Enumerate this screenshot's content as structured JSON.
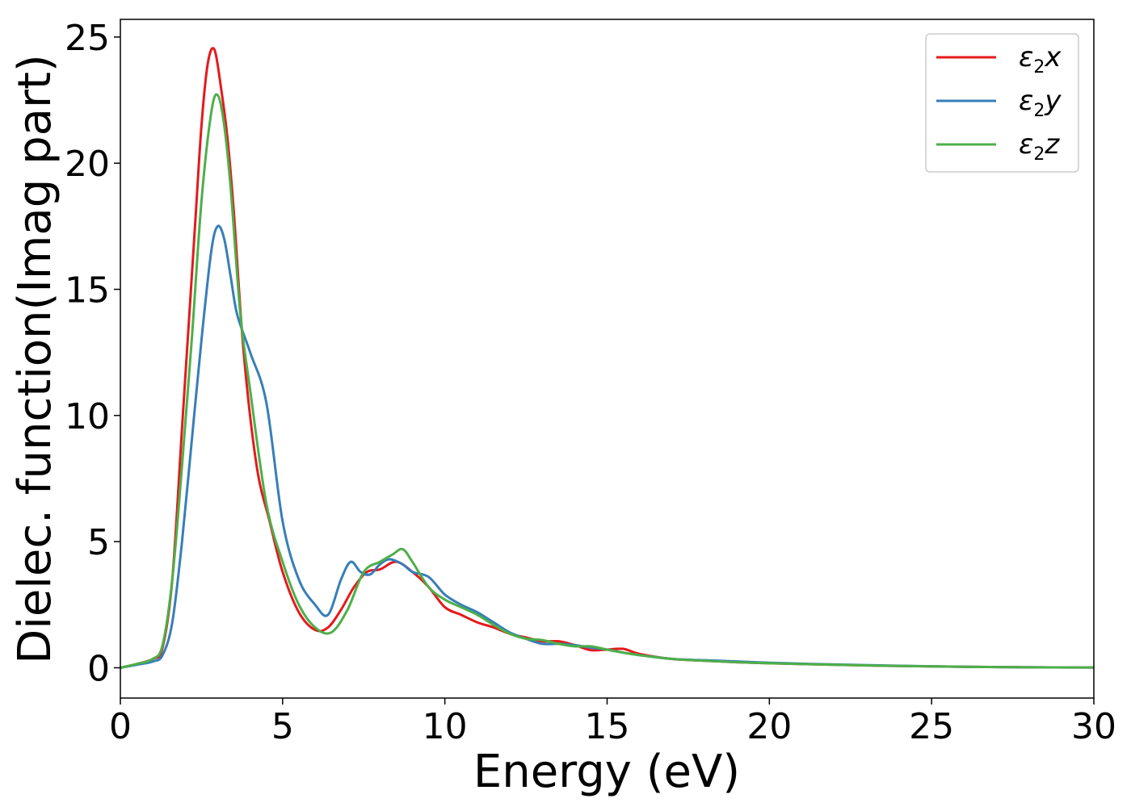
{
  "chart_data": {
    "type": "line",
    "title": "",
    "xlabel": "Energy (eV)",
    "ylabel": "Dielec. function(Imag part)",
    "xlim": [
      0,
      30
    ],
    "ylim": [
      -1.2,
      25.7
    ],
    "xticks": [
      0,
      5,
      10,
      15,
      20,
      25,
      30
    ],
    "yticks": [
      0,
      5,
      10,
      15,
      20,
      25
    ],
    "xtick_labels": [
      "0",
      "5",
      "10",
      "15",
      "20",
      "25",
      "30"
    ],
    "ytick_labels": [
      "0",
      "5",
      "10",
      "15",
      "20",
      "25"
    ],
    "grid": false,
    "legend_position": "top-right",
    "series": [
      {
        "name": "ε2x",
        "name_base": "ε",
        "name_sub": "2",
        "name_var": "x",
        "color": "#e41a1c",
        "x": [
          0,
          0.5,
          1,
          1.3,
          1.6,
          1.9,
          2.1,
          2.3,
          2.5,
          2.7,
          2.9,
          3.1,
          3.3,
          3.5,
          3.8,
          4.2,
          4.6,
          5,
          5.5,
          6,
          6.4,
          6.8,
          7.2,
          7.6,
          8,
          8.5,
          9,
          9.5,
          10,
          10.5,
          11,
          11.5,
          12,
          12.5,
          13,
          13.5,
          14,
          14.5,
          15,
          15.5,
          16,
          17,
          18,
          19,
          20,
          22,
          24,
          26,
          28,
          30
        ],
        "y": [
          0,
          0.15,
          0.35,
          0.8,
          3.5,
          9.5,
          13.5,
          17.5,
          21.5,
          24,
          24.5,
          23,
          21,
          18,
          12.5,
          8,
          5.8,
          3.8,
          2.2,
          1.5,
          1.6,
          2.3,
          3.2,
          3.8,
          3.9,
          4.2,
          3.8,
          3.2,
          2.4,
          2.1,
          1.8,
          1.6,
          1.35,
          1.2,
          1.05,
          1.05,
          0.9,
          0.7,
          0.72,
          0.75,
          0.55,
          0.35,
          0.28,
          0.22,
          0.18,
          0.12,
          0.07,
          0.04,
          0.02,
          0.01
        ]
      },
      {
        "name": "ε2y",
        "name_base": "ε",
        "name_sub": "2",
        "name_var": "y",
        "color": "#377eb8",
        "x": [
          0,
          0.5,
          1,
          1.3,
          1.6,
          1.9,
          2.2,
          2.5,
          2.8,
          3,
          3.2,
          3.4,
          3.6,
          4,
          4.5,
          5,
          5.5,
          6,
          6.4,
          6.8,
          7.1,
          7.4,
          7.7,
          8,
          8.3,
          8.7,
          9,
          9.5,
          10,
          10.5,
          11,
          11.5,
          12,
          12.5,
          13,
          13.5,
          14,
          14.5,
          15,
          15.5,
          16,
          17,
          18,
          19,
          20,
          22,
          24,
          26,
          28,
          30
        ],
        "y": [
          0,
          0.12,
          0.25,
          0.5,
          1.8,
          5,
          9,
          13,
          16.5,
          17.5,
          17,
          15.5,
          14,
          12.5,
          10.5,
          5.8,
          3.5,
          2.5,
          2.1,
          3.5,
          4.2,
          3.8,
          3.7,
          4.1,
          4.3,
          4.1,
          3.8,
          3.6,
          2.9,
          2.5,
          2.2,
          1.8,
          1.4,
          1.15,
          0.95,
          0.95,
          0.9,
          0.8,
          0.72,
          0.6,
          0.5,
          0.35,
          0.3,
          0.25,
          0.2,
          0.13,
          0.08,
          0.04,
          0.02,
          0.01
        ]
      },
      {
        "name": "ε2z",
        "name_base": "ε",
        "name_sub": "2",
        "name_var": "z",
        "color": "#4daf4a",
        "x": [
          0,
          0.5,
          1,
          1.3,
          1.6,
          1.9,
          2.2,
          2.5,
          2.8,
          3,
          3.2,
          3.4,
          3.7,
          4,
          4.5,
          5,
          5.5,
          6,
          6.5,
          7,
          7.5,
          8,
          8.4,
          8.7,
          9,
          9.5,
          10,
          10.5,
          11,
          11.5,
          12,
          12.5,
          13,
          13.5,
          14,
          14.5,
          15,
          15.5,
          16,
          17,
          18,
          19,
          20,
          22,
          24,
          26,
          28,
          30
        ],
        "y": [
          0,
          0.15,
          0.35,
          0.9,
          3.5,
          8,
          13,
          18.5,
          22,
          22.7,
          21.5,
          19,
          14,
          11,
          6.5,
          4.2,
          2.5,
          1.6,
          1.4,
          2.3,
          3.8,
          4.2,
          4.5,
          4.7,
          4.2,
          3.2,
          2.7,
          2.4,
          2.1,
          1.7,
          1.35,
          1.15,
          1.1,
          0.95,
          0.85,
          0.85,
          0.72,
          0.6,
          0.5,
          0.35,
          0.28,
          0.22,
          0.18,
          0.12,
          0.07,
          0.04,
          0.02,
          0.01
        ]
      }
    ]
  }
}
